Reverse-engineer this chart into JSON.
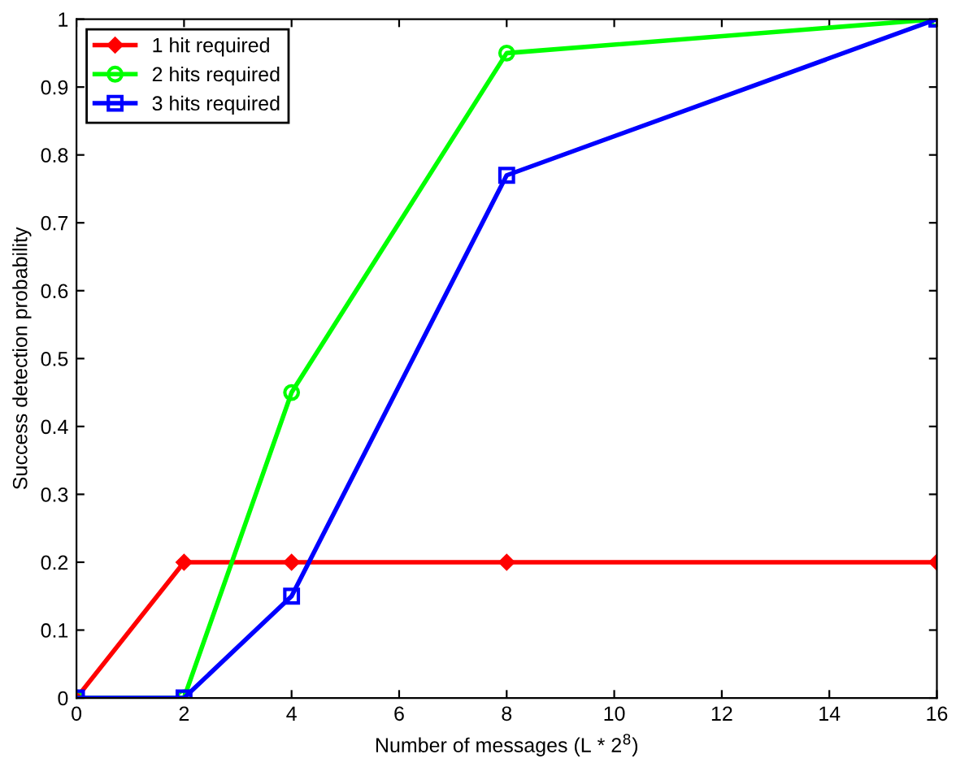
{
  "chart_data": {
    "type": "line",
    "xlabel": "Number of messages (L * 2$^{8}$)",
    "ylabel": "Success detection probability",
    "x": [
      0,
      2,
      4,
      8,
      16
    ],
    "series": [
      {
        "name": "1 hit required",
        "color": "#ff0000",
        "marker": "diamond",
        "values": [
          0,
          0.2,
          0.2,
          0.2,
          0.2
        ]
      },
      {
        "name": "2 hits required",
        "color": "#00ff00",
        "marker": "circle",
        "values": [
          0,
          0,
          0.45,
          0.95,
          1
        ]
      },
      {
        "name": "3 hits required",
        "color": "#0000ff",
        "marker": "square",
        "values": [
          0,
          0,
          0.15,
          0.77,
          1
        ]
      }
    ],
    "xlim": [
      0,
      16
    ],
    "xticks": [
      0,
      2,
      4,
      6,
      8,
      10,
      12,
      14,
      16
    ],
    "ylim": [
      0,
      1
    ],
    "yticks": [
      0,
      0.1,
      0.2,
      0.3,
      0.4,
      0.5,
      0.6,
      0.7,
      0.8,
      0.9,
      1
    ],
    "grid": false,
    "legend": "top left",
    "line_style": "solid"
  }
}
